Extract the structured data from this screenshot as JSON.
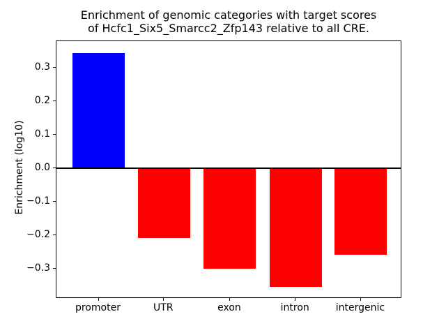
{
  "figure": {
    "background": "#ffffff"
  },
  "chart_data": {
    "type": "bar",
    "title": "Enrichment of genomic categories with target scores\nof Hcfc1_Six5_Smarcc2_Zfp143 relative to all CRE.",
    "xlabel": "",
    "ylabel": "Enrichment (log10)",
    "categories": [
      "promoter",
      "UTR",
      "exon",
      "intron",
      "intergenic"
    ],
    "values": [
      0.344,
      -0.208,
      -0.301,
      -0.354,
      -0.258
    ],
    "bar_colors": [
      "#0000ff",
      "#ff0000",
      "#ff0000",
      "#ff0000",
      "#ff0000"
    ],
    "positive_color": "#0000ff",
    "negative_color": "#ff0000",
    "axis_color": "#000000",
    "ylim": [
      -0.39,
      0.38
    ],
    "yticks": [
      0.3,
      0.2,
      0.1,
      0.0,
      -0.1,
      -0.2,
      -0.3
    ],
    "ytick_labels": [
      "0.3",
      "0.2",
      "0.1",
      "0.0",
      "−0.1",
      "−0.2",
      "−0.3"
    ],
    "zero_line": true,
    "grid": false,
    "legend": "none"
  }
}
